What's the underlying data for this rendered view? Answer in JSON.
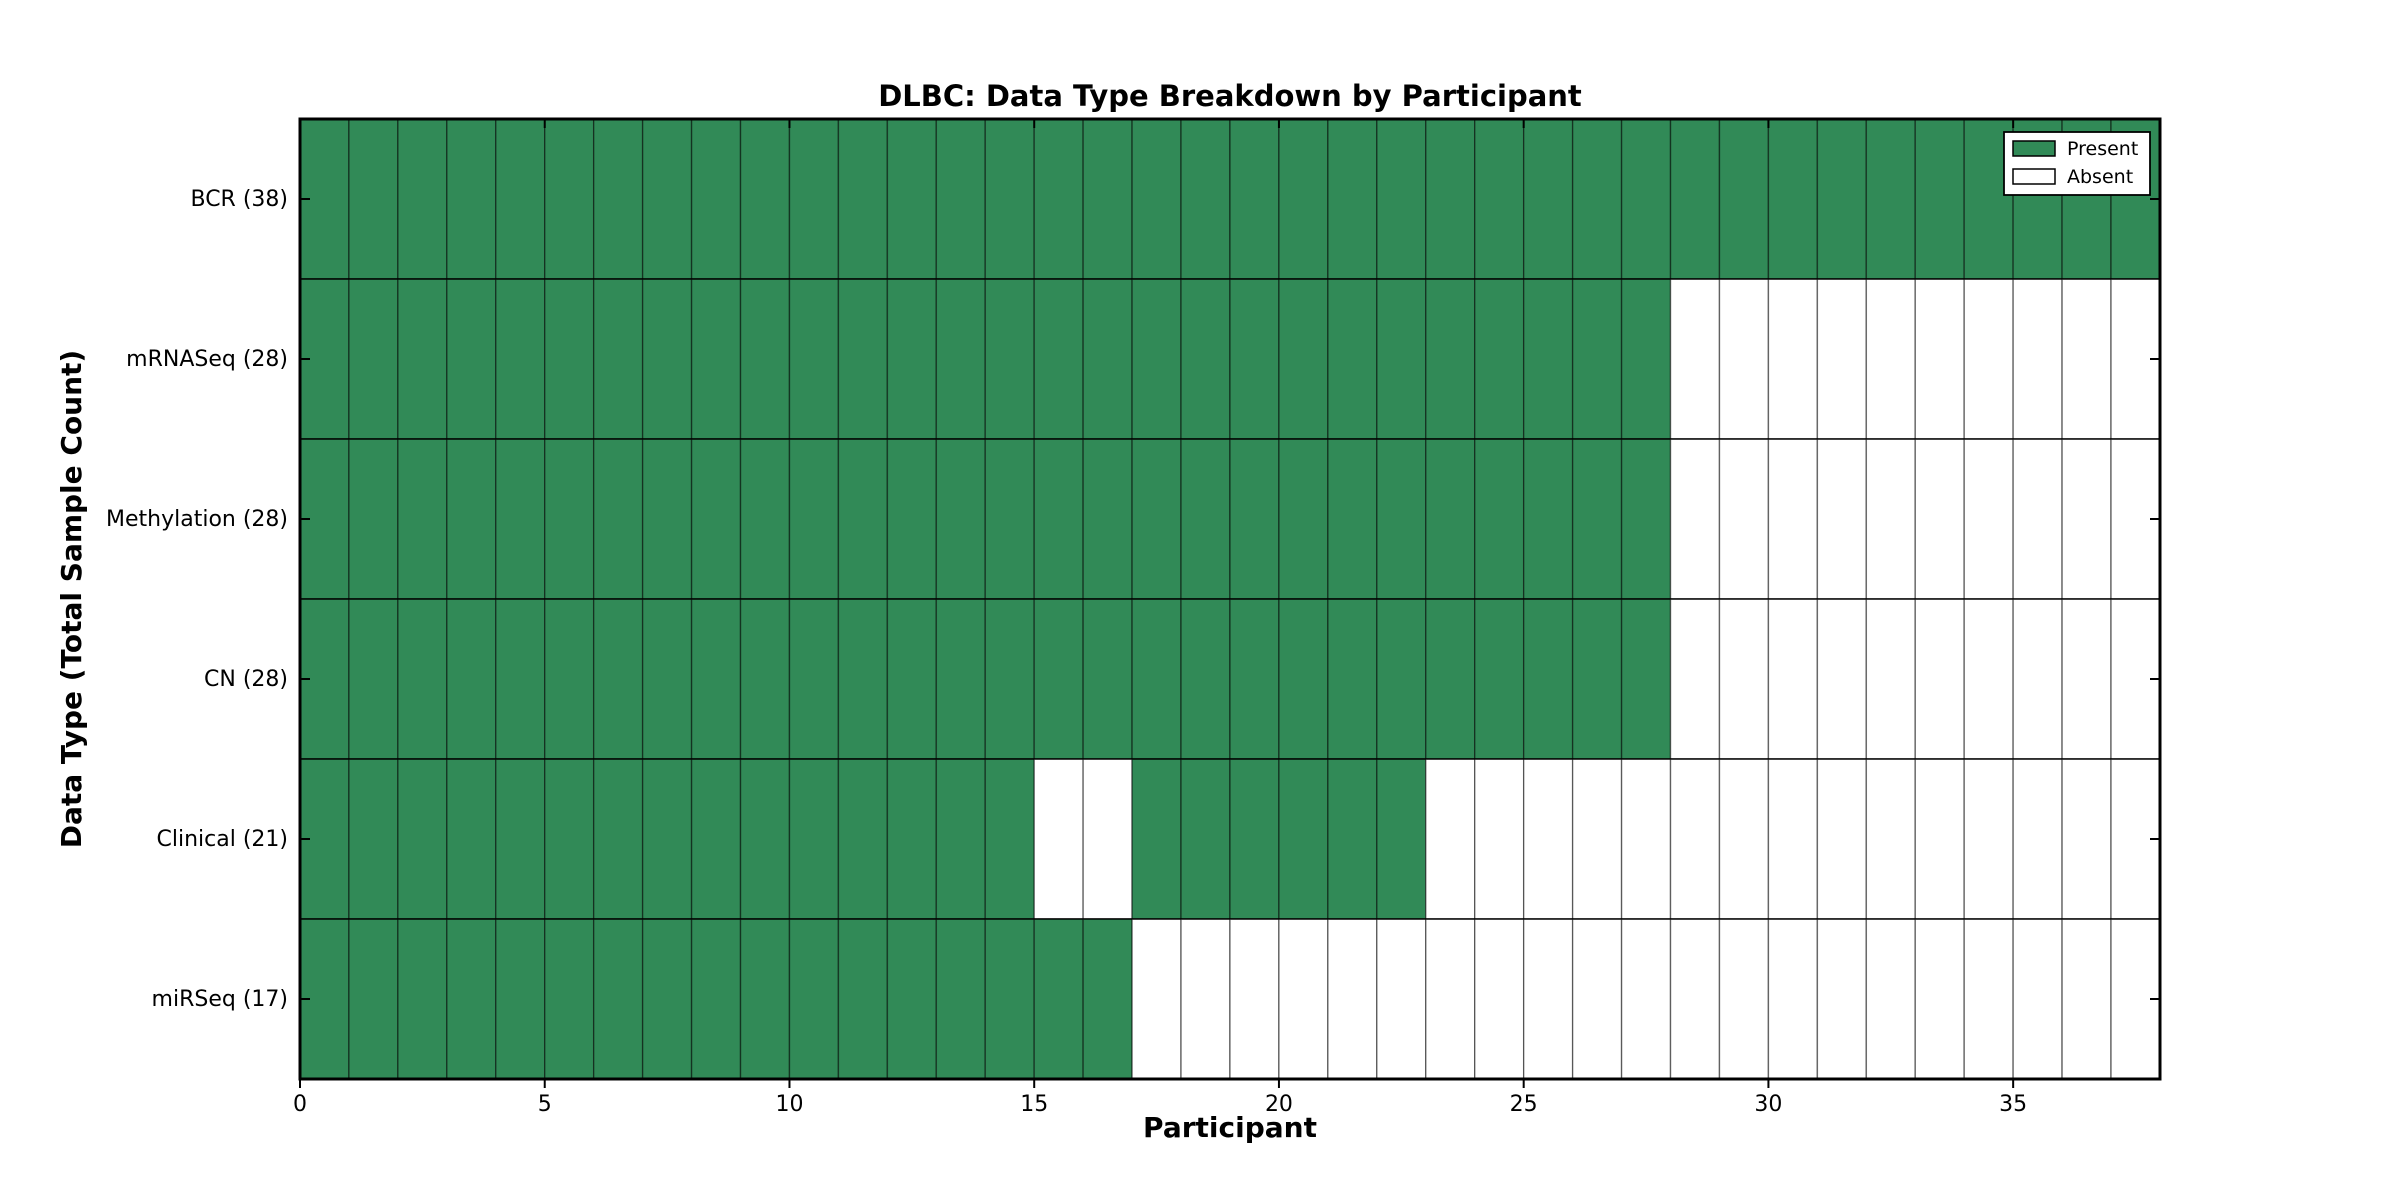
{
  "figure": {
    "title": "DLBC: Data Type Breakdown by Participant",
    "xlabel": "Participant",
    "ylabel": "Data Type (Total Sample Count)"
  },
  "chart_data": {
    "type": "heatmap",
    "title": "DLBC: Data Type Breakdown by Participant",
    "xlabel": "Participant",
    "ylabel": "Data Type (Total Sample Count)",
    "n_participants": 38,
    "x_range": [
      0,
      38
    ],
    "x_ticks": [
      0,
      5,
      10,
      15,
      20,
      25,
      30,
      35
    ],
    "x_tick_labels": [
      "0",
      "5",
      "10",
      "15",
      "20",
      "25",
      "30",
      "35"
    ],
    "rows": [
      {
        "label": "BCR (38)",
        "data_type": "BCR",
        "count": 38,
        "present_ranges": [
          [
            0,
            38
          ]
        ]
      },
      {
        "label": "mRNASeq (28)",
        "data_type": "mRNASeq",
        "count": 28,
        "present_ranges": [
          [
            0,
            28
          ]
        ]
      },
      {
        "label": "Methylation (28)",
        "data_type": "Methylation",
        "count": 28,
        "present_ranges": [
          [
            0,
            28
          ]
        ]
      },
      {
        "label": "CN (28)",
        "data_type": "CN",
        "count": 28,
        "present_ranges": [
          [
            0,
            28
          ]
        ]
      },
      {
        "label": "Clinical (21)",
        "data_type": "Clinical",
        "count": 21,
        "present_ranges": [
          [
            0,
            15
          ],
          [
            17,
            23
          ]
        ]
      },
      {
        "label": "miRSeq (17)",
        "data_type": "miRSeq",
        "count": 17,
        "present_ranges": [
          [
            0,
            17
          ]
        ]
      }
    ],
    "legend": [
      {
        "label": "Present",
        "color": "#318a57"
      },
      {
        "label": "Absent",
        "color": "#ffffff"
      }
    ],
    "legend_position": "upper-right",
    "grid": true,
    "colors": {
      "present": "#318a57",
      "absent": "#ffffff",
      "cell_border": "rgba(0,0,0,0.50)",
      "row_divider": "rgba(0,0,0,0.60)",
      "axis": "#000000",
      "background": "#ffffff"
    }
  }
}
